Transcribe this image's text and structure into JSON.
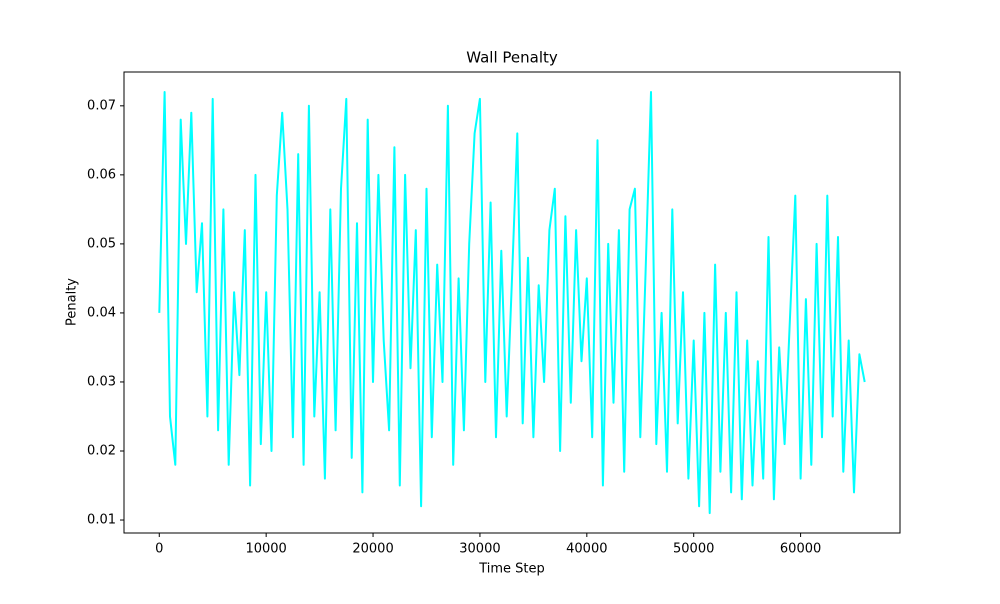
{
  "chart_data": {
    "type": "line",
    "title": "Wall Penalty",
    "x_label": "Time Step",
    "y_label": "Penalty",
    "color": "#00ffff",
    "x": [
      0,
      500,
      1000,
      1500,
      2000,
      2500,
      3000,
      3500,
      4000,
      4500,
      5000,
      5500,
      6000,
      6500,
      7000,
      7500,
      8000,
      8500,
      9000,
      9500,
      10000,
      10500,
      11000,
      11500,
      12000,
      12500,
      13000,
      13500,
      14000,
      14500,
      15000,
      15500,
      16000,
      16500,
      17000,
      17500,
      18000,
      18500,
      19000,
      19500,
      20000,
      20500,
      21000,
      21500,
      22000,
      22500,
      23000,
      23500,
      24000,
      24500,
      25000,
      25500,
      26000,
      26500,
      27000,
      27500,
      28000,
      28500,
      29000,
      29500,
      30000,
      30500,
      31000,
      31500,
      32000,
      32500,
      33000,
      33500,
      34000,
      34500,
      35000,
      35500,
      36000,
      36500,
      37000,
      37500,
      38000,
      38500,
      39000,
      39500,
      40000,
      40500,
      41000,
      41500,
      42000,
      42500,
      43000,
      43500,
      44000,
      44500,
      45000,
      45500,
      46000,
      46500,
      47000,
      47500,
      48000,
      48500,
      49000,
      49500,
      50000,
      50500,
      51000,
      51500,
      52000,
      52500,
      53000,
      53500,
      54000,
      54500,
      55000,
      55500,
      56000,
      56500,
      57000,
      57500,
      58000,
      58500,
      59000,
      59500,
      60000,
      60500,
      61000,
      61500,
      62000,
      62500,
      63000,
      63500,
      64000,
      64500,
      65000,
      65500,
      66000
    ],
    "values": [
      0.04,
      0.072,
      0.025,
      0.018,
      0.068,
      0.05,
      0.069,
      0.043,
      0.053,
      0.025,
      0.071,
      0.023,
      0.055,
      0.018,
      0.043,
      0.031,
      0.052,
      0.015,
      0.06,
      0.021,
      0.043,
      0.02,
      0.057,
      0.069,
      0.055,
      0.022,
      0.063,
      0.018,
      0.07,
      0.025,
      0.043,
      0.016,
      0.055,
      0.023,
      0.058,
      0.071,
      0.019,
      0.053,
      0.014,
      0.068,
      0.03,
      0.06,
      0.036,
      0.023,
      0.064,
      0.015,
      0.06,
      0.032,
      0.052,
      0.012,
      0.058,
      0.022,
      0.047,
      0.03,
      0.07,
      0.018,
      0.045,
      0.023,
      0.05,
      0.066,
      0.071,
      0.03,
      0.056,
      0.022,
      0.049,
      0.025,
      0.045,
      0.066,
      0.024,
      0.048,
      0.022,
      0.044,
      0.03,
      0.052,
      0.058,
      0.02,
      0.054,
      0.027,
      0.052,
      0.033,
      0.045,
      0.022,
      0.065,
      0.015,
      0.05,
      0.027,
      0.052,
      0.017,
      0.055,
      0.058,
      0.022,
      0.046,
      0.072,
      0.021,
      0.04,
      0.017,
      0.055,
      0.024,
      0.043,
      0.016,
      0.036,
      0.012,
      0.04,
      0.011,
      0.047,
      0.017,
      0.04,
      0.014,
      0.043,
      0.013,
      0.036,
      0.015,
      0.033,
      0.016,
      0.051,
      0.013,
      0.035,
      0.021,
      0.039,
      0.057,
      0.016,
      0.042,
      0.018,
      0.05,
      0.022,
      0.057,
      0.025,
      0.051,
      0.017,
      0.036,
      0.014,
      0.034,
      0.03
    ],
    "xlim": [
      -3300,
      69300
    ],
    "xticks": [
      0,
      10000,
      20000,
      30000,
      40000,
      50000,
      60000
    ],
    "ylim": [
      0.00812,
      0.0749
    ],
    "yticks": [
      0.01,
      0.02,
      0.03,
      0.04,
      0.05,
      0.06,
      0.07
    ]
  }
}
